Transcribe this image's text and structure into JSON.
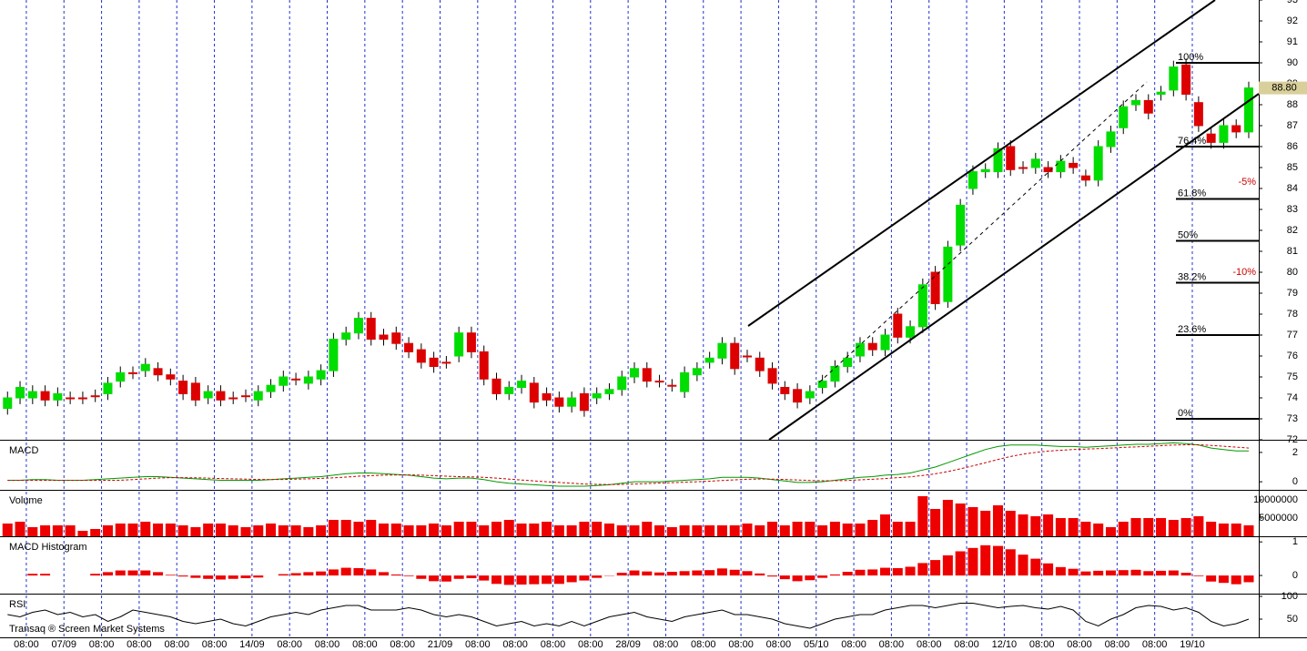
{
  "chart_data": [
    {
      "type": "candlestick",
      "x": [
        0,
        1,
        2,
        3,
        4,
        5,
        6,
        7,
        8,
        9,
        10,
        11,
        12,
        13,
        14,
        15,
        16,
        17,
        18,
        19,
        20,
        21,
        22,
        23,
        24,
        25,
        26,
        27,
        28,
        29,
        30,
        31,
        32,
        33,
        34,
        35,
        36,
        37,
        38,
        39,
        40,
        41,
        42,
        43,
        44,
        45,
        46,
        47,
        48,
        49,
        50,
        51,
        52,
        53,
        54,
        55,
        56,
        57,
        58,
        59,
        60,
        61,
        62,
        63,
        64,
        65,
        66,
        67,
        68,
        69,
        70,
        71,
        72,
        73,
        74,
        75,
        76,
        77,
        78,
        79,
        80,
        81,
        82,
        83,
        84,
        85,
        86,
        87,
        88,
        89,
        90,
        91,
        92,
        93,
        94,
        95,
        96,
        97,
        98,
        99
      ],
      "open": [
        73.5,
        74.0,
        74.0,
        74.3,
        73.9,
        74.0,
        74.0,
        74.1,
        74.2,
        74.8,
        75.2,
        75.3,
        75.4,
        75.1,
        74.8,
        74.7,
        74.0,
        74.3,
        74.0,
        74.1,
        73.9,
        74.3,
        74.6,
        74.9,
        74.7,
        74.9,
        75.3,
        76.8,
        77.1,
        77.8,
        77.0,
        77.1,
        76.6,
        76.3,
        75.9,
        75.7,
        76.0,
        77.1,
        76.2,
        74.9,
        74.2,
        74.5,
        74.7,
        74.2,
        74.0,
        73.6,
        74.2,
        74.0,
        74.2,
        74.4,
        75.0,
        75.4,
        74.8,
        74.6,
        74.3,
        75.1,
        75.7,
        75.9,
        76.6,
        76.0,
        75.9,
        75.4,
        74.5,
        74.4,
        74.0,
        74.5,
        74.8,
        75.5,
        76.0,
        76.6,
        76.3,
        78.0,
        76.9,
        77.4,
        80.0,
        78.6,
        81.3,
        84.0,
        84.8,
        84.8,
        86.0,
        85.0,
        85.0,
        85.0,
        84.8,
        85.2,
        84.6,
        84.4,
        86.0,
        86.9,
        88.0,
        88.2,
        88.5,
        88.7,
        89.9,
        88.1,
        86.6,
        86.2,
        87.0,
        86.7
      ],
      "high": [
        74.3,
        74.8,
        74.6,
        74.6,
        74.5,
        74.3,
        74.3,
        74.4,
        75.0,
        75.5,
        75.5,
        75.9,
        75.7,
        75.4,
        75.1,
        75.0,
        74.6,
        74.6,
        74.3,
        74.4,
        74.6,
        74.9,
        75.3,
        75.2,
        75.3,
        75.6,
        77.1,
        77.4,
        78.1,
        78.1,
        77.3,
        77.4,
        76.9,
        76.6,
        76.2,
        76.0,
        77.4,
        77.4,
        76.5,
        75.2,
        74.8,
        75.1,
        75.0,
        74.5,
        74.3,
        74.3,
        74.5,
        74.5,
        74.7,
        75.3,
        75.7,
        75.7,
        75.1,
        74.9,
        75.5,
        75.7,
        76.2,
        76.9,
        76.9,
        76.3,
        76.2,
        75.7,
        74.8,
        74.7,
        74.6,
        75.1,
        75.8,
        76.2,
        76.9,
        76.9,
        77.3,
        78.3,
        77.7,
        79.7,
        80.3,
        81.5,
        83.5,
        85.1,
        85.2,
        86.2,
        86.3,
        85.3,
        85.7,
        85.3,
        85.6,
        85.5,
        84.9,
        86.3,
        87.0,
        88.2,
        88.5,
        88.5,
        88.9,
        90.1,
        90.2,
        88.4,
        86.9,
        87.3,
        87.3,
        89.1
      ],
      "low": [
        73.2,
        73.7,
        73.7,
        73.6,
        73.6,
        73.7,
        73.7,
        73.8,
        73.9,
        74.5,
        74.9,
        75.0,
        74.8,
        74.6,
        73.9,
        73.6,
        73.7,
        73.6,
        73.7,
        73.8,
        73.6,
        74.0,
        74.3,
        74.6,
        74.4,
        74.6,
        75.0,
        76.5,
        76.8,
        76.5,
        76.5,
        76.3,
        75.9,
        75.4,
        75.2,
        75.4,
        75.7,
        75.9,
        74.6,
        73.9,
        73.9,
        74.2,
        73.5,
        73.6,
        73.3,
        73.3,
        73.1,
        73.7,
        73.9,
        74.1,
        74.7,
        74.5,
        74.5,
        74.3,
        74.0,
        74.8,
        75.4,
        75.6,
        75.1,
        75.7,
        75.0,
        74.4,
        73.9,
        73.5,
        73.7,
        74.2,
        74.5,
        75.2,
        75.7,
        76.0,
        76.0,
        76.6,
        76.6,
        77.1,
        78.2,
        78.3,
        81.0,
        83.7,
        84.5,
        84.5,
        84.6,
        84.7,
        84.7,
        84.5,
        84.5,
        84.7,
        84.1,
        84.1,
        85.7,
        86.6,
        87.7,
        87.3,
        88.2,
        88.4,
        88.2,
        86.7,
        85.9,
        85.9,
        86.4,
        86.4
      ],
      "close": [
        74.0,
        74.5,
        74.3,
        73.9,
        74.2,
        74.0,
        74.0,
        74.1,
        74.7,
        75.2,
        75.2,
        75.6,
        75.1,
        74.9,
        74.2,
        73.9,
        74.3,
        73.9,
        74.0,
        74.1,
        74.3,
        74.6,
        75.0,
        74.9,
        75.0,
        75.3,
        76.8,
        77.1,
        77.8,
        76.8,
        76.8,
        76.6,
        76.2,
        75.7,
        75.5,
        75.7,
        77.1,
        76.2,
        74.9,
        74.2,
        74.5,
        74.8,
        73.8,
        73.9,
        73.6,
        74.0,
        73.4,
        74.2,
        74.4,
        75.0,
        75.4,
        74.8,
        74.8,
        74.6,
        75.2,
        75.4,
        75.9,
        76.6,
        75.4,
        76.0,
        75.3,
        74.7,
        74.2,
        73.8,
        74.3,
        74.8,
        75.5,
        75.9,
        76.6,
        76.3,
        77.0,
        76.9,
        77.4,
        79.4,
        78.5,
        81.2,
        83.2,
        84.8,
        84.9,
        85.9,
        84.9,
        85.0,
        85.4,
        84.8,
        85.3,
        85.0,
        84.4,
        86.0,
        86.7,
        87.9,
        88.2,
        87.6,
        88.6,
        89.8,
        88.5,
        87.0,
        86.2,
        87.0,
        86.7,
        88.8
      ],
      "up_color": "#00dd00",
      "down_color": "#dd0000",
      "xlim": [
        -0.6,
        99.8
      ],
      "xticks": [
        {
          "value": 1.5,
          "label": "08:00"
        },
        {
          "value": 4.5,
          "label": "07/09"
        },
        {
          "value": 7.5,
          "label": "08:00"
        },
        {
          "value": 10.5,
          "label": "08:00"
        },
        {
          "value": 13.5,
          "label": "08:00"
        },
        {
          "value": 16.5,
          "label": "08:00"
        },
        {
          "value": 19.5,
          "label": "14/09"
        },
        {
          "value": 22.5,
          "label": "08:00"
        },
        {
          "value": 25.5,
          "label": "08:00"
        },
        {
          "value": 28.5,
          "label": "08:00"
        },
        {
          "value": 31.5,
          "label": "08:00"
        },
        {
          "value": 34.5,
          "label": "21/09"
        },
        {
          "value": 37.5,
          "label": "08:00"
        },
        {
          "value": 40.5,
          "label": "08:00"
        },
        {
          "value": 43.5,
          "label": "08:00"
        },
        {
          "value": 46.5,
          "label": "08:00"
        },
        {
          "value": 49.5,
          "label": "28/09"
        },
        {
          "value": 52.5,
          "label": "08:00"
        },
        {
          "value": 55.5,
          "label": "08:00"
        },
        {
          "value": 58.5,
          "label": "08:00"
        },
        {
          "value": 61.5,
          "label": "08:00"
        },
        {
          "value": 64.5,
          "label": "05/10"
        },
        {
          "value": 67.5,
          "label": "08:00"
        },
        {
          "value": 70.5,
          "label": "08:00"
        },
        {
          "value": 73.5,
          "label": "08:00"
        },
        {
          "value": 76.5,
          "label": "08:00"
        },
        {
          "value": 79.5,
          "label": "12/10"
        },
        {
          "value": 82.5,
          "label": "08:00"
        },
        {
          "value": 85.5,
          "label": "08:00"
        },
        {
          "value": 88.5,
          "label": "08:00"
        },
        {
          "value": 91.5,
          "label": "08:00"
        },
        {
          "value": 94.5,
          "label": "19/10"
        }
      ],
      "ylim": [
        72,
        93
      ],
      "yticks": [
        72,
        73,
        74,
        75,
        76,
        77,
        78,
        79,
        80,
        81,
        82,
        83,
        84,
        85,
        86,
        87,
        88,
        89,
        90,
        91,
        92,
        93
      ],
      "last_price": {
        "value": 88.8,
        "label": "88.80"
      },
      "fib_levels": [
        {
          "value": 90,
          "label": "100%"
        },
        {
          "value": 86,
          "label": "76.4%"
        },
        {
          "value": 83.5,
          "label": "61.8%"
        },
        {
          "value": 81.5,
          "label": "50%"
        },
        {
          "value": 79.5,
          "label": "38.2%"
        },
        {
          "value": 77,
          "label": "23.6%"
        },
        {
          "value": 73,
          "label": "0%"
        }
      ],
      "annotations": [
        {
          "value": 84.3,
          "label": "-5%"
        },
        {
          "value": 80,
          "label": "-10%"
        }
      ],
      "watermark": "Transaq ® Screen Market Systems"
    },
    {
      "type": "line",
      "title": "MACD",
      "ylim": [
        -0.55,
        2.8
      ],
      "yticks": [
        0,
        2
      ],
      "series": [
        {
          "color": "#009900",
          "dash": false,
          "values": [
            0.1,
            0.1,
            0.15,
            0.15,
            0.1,
            0.1,
            0.1,
            0.15,
            0.2,
            0.25,
            0.3,
            0.35,
            0.35,
            0.3,
            0.25,
            0.2,
            0.15,
            0.1,
            0.1,
            0.1,
            0.1,
            0.15,
            0.2,
            0.25,
            0.3,
            0.35,
            0.45,
            0.55,
            0.6,
            0.6,
            0.55,
            0.5,
            0.45,
            0.35,
            0.25,
            0.2,
            0.25,
            0.25,
            0.15,
            0.0,
            -0.1,
            -0.15,
            -0.2,
            -0.25,
            -0.3,
            -0.3,
            -0.3,
            -0.25,
            -0.2,
            -0.1,
            0.0,
            0.0,
            0.0,
            0.05,
            0.1,
            0.15,
            0.2,
            0.3,
            0.3,
            0.3,
            0.25,
            0.15,
            0.05,
            -0.05,
            -0.05,
            0.0,
            0.1,
            0.2,
            0.3,
            0.35,
            0.45,
            0.5,
            0.6,
            0.8,
            1.0,
            1.3,
            1.6,
            1.9,
            2.2,
            2.4,
            2.5,
            2.5,
            2.5,
            2.45,
            2.4,
            2.4,
            2.35,
            2.4,
            2.45,
            2.5,
            2.55,
            2.55,
            2.6,
            2.65,
            2.6,
            2.5,
            2.3,
            2.2,
            2.1,
            2.1
          ]
        },
        {
          "color": "#cc0000",
          "dash": true,
          "values": [
            0.1,
            0.1,
            0.1,
            0.1,
            0.1,
            0.1,
            0.1,
            0.1,
            0.1,
            0.1,
            0.15,
            0.2,
            0.25,
            0.28,
            0.28,
            0.27,
            0.25,
            0.22,
            0.2,
            0.18,
            0.16,
            0.15,
            0.16,
            0.18,
            0.2,
            0.23,
            0.27,
            0.32,
            0.38,
            0.42,
            0.45,
            0.47,
            0.47,
            0.45,
            0.42,
            0.38,
            0.35,
            0.33,
            0.3,
            0.25,
            0.18,
            0.12,
            0.06,
            0.0,
            -0.05,
            -0.1,
            -0.15,
            -0.18,
            -0.19,
            -0.18,
            -0.15,
            -0.12,
            -0.09,
            -0.06,
            -0.03,
            0.0,
            0.04,
            0.09,
            0.13,
            0.17,
            0.19,
            0.18,
            0.16,
            0.12,
            0.09,
            0.07,
            0.07,
            0.09,
            0.13,
            0.17,
            0.22,
            0.28,
            0.34,
            0.43,
            0.54,
            0.7,
            0.88,
            1.08,
            1.3,
            1.52,
            1.72,
            1.88,
            2.0,
            2.09,
            2.15,
            2.2,
            2.23,
            2.26,
            2.3,
            2.34,
            2.38,
            2.42,
            2.46,
            2.5,
            2.52,
            2.52,
            2.48,
            2.42,
            2.36,
            2.3
          ]
        }
      ]
    },
    {
      "type": "bar",
      "title": "Volume",
      "ylim": [
        0,
        12500000
      ],
      "yticks": [
        5000000,
        10000000
      ],
      "color": "#ee0000",
      "values": [
        3500000,
        4000000,
        2500000,
        3000000,
        3000000,
        3000000,
        1500000,
        2000000,
        3000000,
        3500000,
        3500000,
        4000000,
        3500000,
        3500000,
        3000000,
        2500000,
        3500000,
        3500000,
        3000000,
        2500000,
        3000000,
        3500000,
        3000000,
        3000000,
        2500000,
        3000000,
        4500000,
        4500000,
        4000000,
        4500000,
        3500000,
        3500000,
        3000000,
        3000000,
        3500000,
        3000000,
        4000000,
        4000000,
        3000000,
        4000000,
        4500000,
        3500000,
        3500000,
        4000000,
        3000000,
        3000000,
        4000000,
        4000000,
        3500000,
        3000000,
        3000000,
        4000000,
        3000000,
        2500000,
        3000000,
        3000000,
        3000000,
        3000000,
        3000000,
        3500000,
        3000000,
        4000000,
        3000000,
        4000000,
        4000000,
        3000000,
        4000000,
        3500000,
        3500000,
        4500000,
        6000000,
        4000000,
        4000000,
        11000000,
        7500000,
        10000000,
        9000000,
        8000000,
        7000000,
        8500000,
        7000000,
        6000000,
        5500000,
        6000000,
        5000000,
        5000000,
        4000000,
        3500000,
        2500000,
        4000000,
        5000000,
        5000000,
        5000000,
        4500000,
        5000000,
        5500000,
        4000000,
        3500000,
        3500000,
        3000000
      ]
    },
    {
      "type": "bar",
      "title": "MACD Histogram",
      "ylim": [
        -0.54,
        1.14
      ],
      "yticks": [
        0,
        1
      ],
      "color": "#ee0000",
      "values": [
        0,
        0,
        0.05,
        0.05,
        0,
        0,
        0,
        0.05,
        0.1,
        0.15,
        0.15,
        0.15,
        0.1,
        0.02,
        -0.03,
        -0.07,
        -0.1,
        -0.12,
        -0.1,
        -0.08,
        -0.06,
        0,
        0.04,
        0.07,
        0.1,
        0.12,
        0.18,
        0.23,
        0.22,
        0.18,
        0.1,
        0.03,
        -0.02,
        -0.1,
        -0.17,
        -0.18,
        -0.1,
        -0.08,
        -0.15,
        -0.25,
        -0.28,
        -0.27,
        -0.26,
        -0.25,
        -0.25,
        -0.2,
        -0.15,
        -0.07,
        -0.01,
        0.08,
        0.15,
        0.12,
        0.09,
        0.11,
        0.13,
        0.15,
        0.16,
        0.21,
        0.17,
        0.13,
        0.06,
        -0.03,
        -0.11,
        -0.17,
        -0.14,
        -0.07,
        0.03,
        0.11,
        0.17,
        0.18,
        0.23,
        0.22,
        0.26,
        0.37,
        0.46,
        0.6,
        0.72,
        0.82,
        0.9,
        0.88,
        0.78,
        0.62,
        0.5,
        0.36,
        0.25,
        0.2,
        0.12,
        0.14,
        0.15,
        0.16,
        0.17,
        0.13,
        0.14,
        0.15,
        0.08,
        -0.02,
        -0.18,
        -0.22,
        -0.26,
        -0.2
      ]
    },
    {
      "type": "line",
      "title": "RSI",
      "ylim": [
        10,
        104
      ],
      "yticks": [
        50,
        100
      ],
      "series": [
        {
          "color": "#000000",
          "dash": false,
          "values": [
            60,
            55,
            65,
            70,
            60,
            65,
            55,
            60,
            45,
            55,
            70,
            65,
            60,
            55,
            45,
            40,
            45,
            50,
            40,
            35,
            45,
            55,
            60,
            65,
            60,
            70,
            75,
            80,
            80,
            70,
            70,
            70,
            75,
            70,
            60,
            55,
            60,
            55,
            45,
            35,
            40,
            45,
            35,
            40,
            35,
            45,
            35,
            45,
            55,
            60,
            65,
            55,
            50,
            45,
            55,
            60,
            65,
            70,
            60,
            60,
            55,
            50,
            40,
            35,
            30,
            40,
            50,
            55,
            60,
            60,
            70,
            75,
            80,
            80,
            75,
            80,
            85,
            85,
            80,
            75,
            78,
            80,
            75,
            72,
            78,
            70,
            45,
            35,
            50,
            60,
            75,
            80,
            78,
            70,
            75,
            65,
            45,
            35,
            40,
            50
          ]
        }
      ]
    }
  ]
}
